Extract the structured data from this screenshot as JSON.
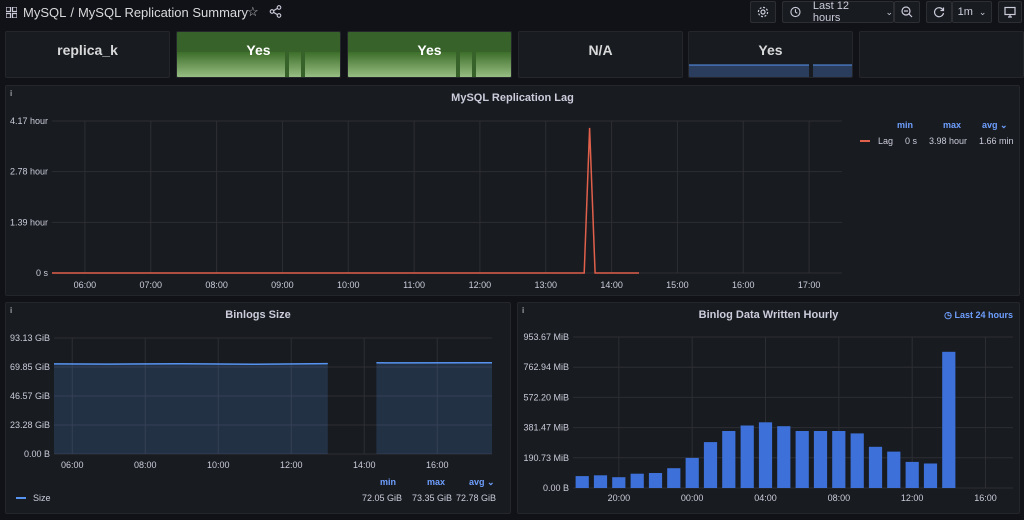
{
  "header": {
    "home": "MySQL",
    "title": "MySQL Replication Summary",
    "time_range": "Last 12 hours",
    "refresh": "1m"
  },
  "stats": [
    {
      "value": "replica_k"
    },
    {
      "value": "Yes"
    },
    {
      "value": "Yes"
    },
    {
      "value": "N/A"
    },
    {
      "value": "Yes"
    }
  ],
  "lag_panel": {
    "title": "MySQL Replication Lag",
    "y_ticks": [
      "4.17 hour",
      "2.78 hour",
      "1.39 hour",
      "0 s"
    ],
    "x_ticks": [
      "06:00",
      "07:00",
      "08:00",
      "09:00",
      "10:00",
      "11:00",
      "12:00",
      "13:00",
      "14:00",
      "15:00",
      "16:00",
      "17:00"
    ],
    "legend_headers": {
      "min": "min",
      "max": "max",
      "avg": "avg"
    },
    "legend": {
      "name": "Lag",
      "min": "0 s",
      "max": "3.98 hour",
      "avg": "1.66 min"
    },
    "color": "#e0604b"
  },
  "binlogs_panel": {
    "title": "Binlogs Size",
    "y_ticks": [
      "93.13 GiB",
      "69.85 GiB",
      "46.57 GiB",
      "23.28 GiB",
      "0.00 B"
    ],
    "x_ticks": [
      "06:00",
      "08:00",
      "10:00",
      "12:00",
      "14:00",
      "16:00"
    ],
    "legend_headers": {
      "min": "min",
      "max": "max",
      "avg": "avg"
    },
    "legend": {
      "name": "Size",
      "min": "72.05 GiB",
      "max": "73.35 GiB",
      "avg": "72.78 GiB"
    },
    "color": "#5794f2"
  },
  "hourly_panel": {
    "title": "Binlog Data Written Hourly",
    "time_info": "Last 24 hours",
    "y_ticks": [
      "953.67 MiB",
      "762.94 MiB",
      "572.20 MiB",
      "381.47 MiB",
      "190.73 MiB",
      "0.00 B"
    ],
    "x_ticks": [
      "20:00",
      "00:00",
      "04:00",
      "08:00",
      "12:00",
      "16:00"
    ],
    "color": "#3d71d9"
  },
  "chart_data": [
    {
      "type": "line",
      "title": "MySQL Replication Lag",
      "series": [
        {
          "name": "Lag",
          "x": [
            "05:30",
            "13:35",
            "13:40",
            "13:45",
            "14:25",
            "14:30",
            "17:30"
          ],
          "values_hours": [
            0,
            0,
            3.98,
            0,
            0,
            null,
            0
          ]
        }
      ],
      "ylim": [
        0,
        4.17
      ],
      "unit": "hour"
    },
    {
      "type": "area",
      "title": "Binlogs Size",
      "series": [
        {
          "name": "Size",
          "x": [
            "05:30",
            "07:00",
            "09:00",
            "11:00",
            "13:00",
            "14:20",
            "14:35",
            "17:30"
          ],
          "values_gib": [
            72.3,
            72.2,
            72.4,
            72.1,
            72.6,
            73.3,
            73.1,
            73.3
          ]
        }
      ],
      "ylim": [
        0,
        93.13
      ]
    },
    {
      "type": "bar",
      "title": "Binlog Data Written Hourly",
      "x": [
        "18:00",
        "19:00",
        "20:00",
        "21:00",
        "22:00",
        "23:00",
        "00:00",
        "01:00",
        "02:00",
        "03:00",
        "04:00",
        "05:00",
        "06:00",
        "07:00",
        "08:00",
        "09:00",
        "10:00",
        "11:00",
        "12:00",
        "13:00",
        "14:00"
      ],
      "values_mib": [
        75,
        80,
        68,
        90,
        95,
        125,
        190,
        290,
        360,
        395,
        415,
        390,
        360,
        360,
        360,
        345,
        260,
        230,
        165,
        155,
        860
      ],
      "ylim": [
        0,
        953.67
      ]
    }
  ]
}
